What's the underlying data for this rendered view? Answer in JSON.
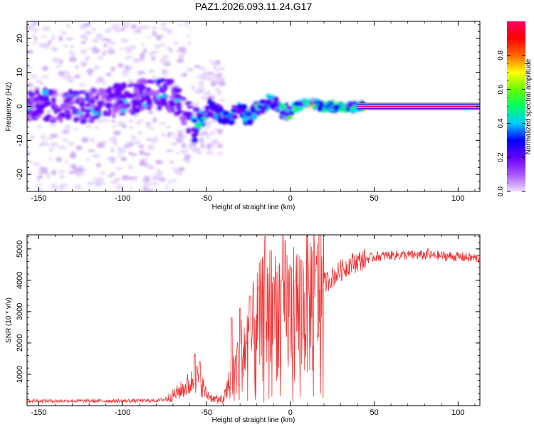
{
  "title": "PAZ1.2026.093.11.24.G17",
  "chart_data": [
    {
      "type": "heatmap",
      "name": "spectrogram",
      "xlabel": "Height of straight line (km)",
      "ylabel": "Frequency (Hz)",
      "xlim": [
        -157,
        113
      ],
      "ylim": [
        -25,
        25
      ],
      "xticks": [
        "-150",
        "-100",
        "-50",
        "0",
        "50",
        "100"
      ],
      "xtick_values": [
        -150,
        -100,
        -50,
        0,
        50,
        100
      ],
      "yticks": [
        "-20",
        "-10",
        "0",
        "10",
        "20"
      ],
      "ytick_values": [
        -20,
        -10,
        0,
        10,
        20
      ],
      "ridge_track": [
        {
          "x": -155,
          "y": 1
        },
        {
          "x": -140,
          "y": 0
        },
        {
          "x": -120,
          "y": 0
        },
        {
          "x": -100,
          "y": 2
        },
        {
          "x": -80,
          "y": 4
        },
        {
          "x": -70,
          "y": 3
        },
        {
          "x": -62,
          "y": -2
        },
        {
          "x": -57,
          "y": -6
        },
        {
          "x": -52,
          "y": -3
        },
        {
          "x": -48,
          "y": 0
        },
        {
          "x": -43,
          "y": -2
        },
        {
          "x": -38,
          "y": -4
        },
        {
          "x": -32,
          "y": -1
        },
        {
          "x": -25,
          "y": -3
        },
        {
          "x": -20,
          "y": -1
        },
        {
          "x": -15,
          "y": 1
        },
        {
          "x": -10,
          "y": 1
        },
        {
          "x": -5,
          "y": -2
        },
        {
          "x": 0,
          "y": -1
        },
        {
          "x": 5,
          "y": 0
        },
        {
          "x": 10,
          "y": 1
        },
        {
          "x": 20,
          "y": 0
        },
        {
          "x": 30,
          "y": 0
        },
        {
          "x": 40,
          "y": 0
        },
        {
          "x": 113,
          "y": 0
        }
      ],
      "note": "Stable carrier line at ~0 Hz from about 40 km upward; scattered noise below -50 km",
      "colorbar": {
        "label": "Normalized spectral amplitude",
        "range": [
          0,
          1
        ],
        "ticks": [
          "0.0",
          "0.2",
          "0.4",
          "0.6",
          "0.8"
        ],
        "tick_values": [
          0,
          0.2,
          0.4,
          0.6,
          0.8
        ],
        "colormap": [
          "#eeddff",
          "#aa55ff",
          "#6600ff",
          "#0000ff",
          "#00ccff",
          "#00ff66",
          "#66ff00",
          "#ffff00",
          "#ff6600",
          "#ff0000",
          "#ff0066"
        ]
      }
    },
    {
      "type": "line",
      "name": "snr",
      "xlabel": "Height of straight line (km)",
      "ylabel": "SNR (10 * v/v)",
      "xlim": [
        -157,
        113
      ],
      "ylim": [
        0,
        5450
      ],
      "xticks": [
        "-150",
        "-100",
        "-50",
        "0",
        "50",
        "100"
      ],
      "xtick_values": [
        -150,
        -100,
        -50,
        0,
        50,
        100
      ],
      "yticks": [
        "1000",
        "2000",
        "3000",
        "4000",
        "5000"
      ],
      "ytick_values": [
        1000,
        2000,
        3000,
        4000,
        5000
      ],
      "color": "#ee3333",
      "x": [
        -157,
        -130,
        -100,
        -80,
        -75,
        -70,
        -65,
        -60,
        -55,
        -52,
        -50,
        -45,
        -40,
        -35,
        -30,
        -25,
        -20,
        -15,
        -10,
        -5,
        0,
        5,
        10,
        15,
        20,
        25,
        30,
        35,
        40,
        50,
        60,
        70,
        80,
        90,
        100,
        113
      ],
      "y": [
        150,
        150,
        150,
        160,
        200,
        320,
        500,
        700,
        900,
        600,
        350,
        200,
        180,
        900,
        1600,
        2000,
        2500,
        2900,
        3100,
        3200,
        3000,
        3100,
        3300,
        3600,
        3900,
        4100,
        4300,
        4500,
        4600,
        4750,
        4800,
        4800,
        4800,
        4780,
        4750,
        4700
      ],
      "spikes": [
        {
          "x": -57,
          "y": 1650
        },
        {
          "x": -54,
          "y": 1400
        },
        {
          "x": -35,
          "y": 2800
        },
        {
          "x": -30,
          "y": 3100
        },
        {
          "x": -24,
          "y": 3500
        },
        {
          "x": -15,
          "y": 5400
        },
        {
          "x": -10,
          "y": 4100
        },
        {
          "x": -5,
          "y": 4000
        },
        {
          "x": 3,
          "y": 4000
        },
        {
          "x": 15,
          "y": 4300
        },
        {
          "x": 82,
          "y": 5000
        }
      ]
    }
  ]
}
